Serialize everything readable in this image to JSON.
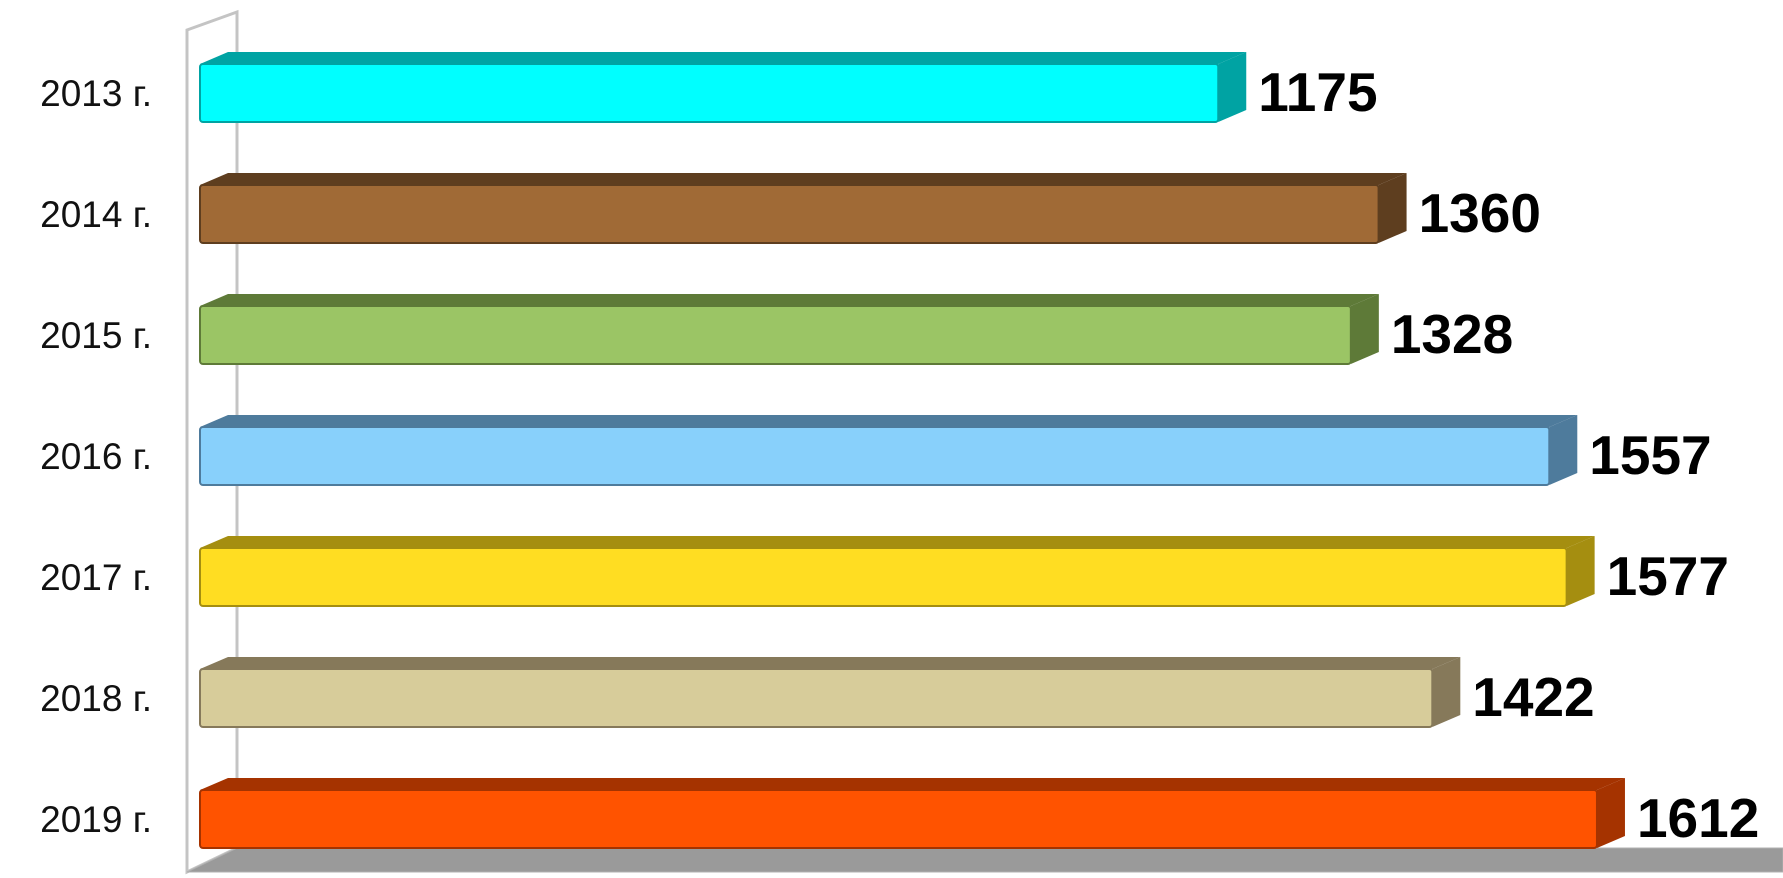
{
  "chart_data": {
    "type": "bar",
    "orientation": "horizontal",
    "style": "3d",
    "categories": [
      "2013 г.",
      "2014 г.",
      "2015 г.",
      "2016 г.",
      "2017 г.",
      "2018 г.",
      "2019 г."
    ],
    "values": [
      1175,
      1360,
      1328,
      1557,
      1577,
      1422,
      1612
    ],
    "value_labels": [
      "1175",
      "1360",
      "1328",
      "1557",
      "1577",
      "1422",
      "1612"
    ],
    "colors": [
      "#00FFFF",
      "#A06A36",
      "#9BC565",
      "#88D0FB",
      "#FFDD22",
      "#D7CC9A",
      "#FF5300"
    ],
    "side_colors": [
      "#00A3A3",
      "#5E3E1F",
      "#5E7A38",
      "#4E7B9C",
      "#A58E10",
      "#86795A",
      "#A53300"
    ],
    "xlim": [
      0,
      1612
    ],
    "grid": false,
    "legend": "none",
    "title": "",
    "xlabel": "",
    "ylabel": ""
  }
}
